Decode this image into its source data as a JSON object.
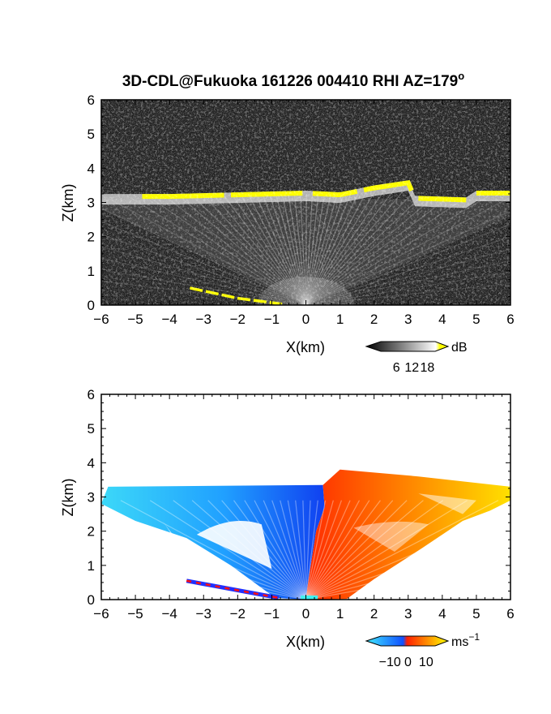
{
  "title": "3D-CDL@Fukuoka 161226 004410 RHI AZ=179",
  "title_sup": "o",
  "chart_data": [
    {
      "type": "heatmap",
      "field": "backscatter",
      "xlabel": "X(km)",
      "ylabel": "Z(km)",
      "xlim": [
        -6,
        6
      ],
      "ylim": [
        0,
        6
      ],
      "xticks": [
        "−6",
        "−5",
        "−4",
        "−3",
        "−2",
        "−1",
        "0",
        "1",
        "2",
        "3",
        "4",
        "5",
        "6"
      ],
      "yticks": [
        "0",
        "1",
        "2",
        "3",
        "4",
        "5",
        "6"
      ],
      "colorbar": {
        "unit": "dB",
        "ticks": [
          "6",
          "12",
          "18"
        ],
        "tick_values": [
          6,
          12,
          18
        ],
        "range": [
          0,
          21
        ],
        "colors": [
          "#000000",
          "#ffffff",
          "#ffff00"
        ]
      },
      "features": {
        "cloud_base_km": [
          [
            -6,
            3.15
          ],
          [
            -4,
            3.15
          ],
          [
            -2,
            3.2
          ],
          [
            0,
            3.25
          ],
          [
            1,
            3.2
          ],
          [
            2,
            3.4
          ],
          [
            3,
            3.55
          ],
          [
            3.2,
            3.1
          ],
          [
            4.7,
            3.05
          ],
          [
            5,
            3.25
          ],
          [
            6,
            3.25
          ]
        ],
        "surface_echo_km": [
          [
            -3.4,
            0.5
          ],
          [
            -2,
            0.2
          ],
          [
            -0.7,
            0.03
          ]
        ]
      }
    },
    {
      "type": "heatmap",
      "field": "doppler_velocity",
      "xlabel": "X(km)",
      "ylabel": "Z(km)",
      "xlim": [
        -6,
        6
      ],
      "ylim": [
        0,
        6
      ],
      "xticks": [
        "−6",
        "−5",
        "−4",
        "−3",
        "−2",
        "−1",
        "0",
        "1",
        "2",
        "3",
        "4",
        "5",
        "6"
      ],
      "yticks": [
        "0",
        "1",
        "2",
        "3",
        "4",
        "5",
        "6"
      ],
      "colorbar": {
        "unit": "ms",
        "unit_sup": "−1",
        "ticks": [
          "−10",
          "0",
          "10"
        ],
        "tick_values": [
          -10,
          0,
          10
        ],
        "range": [
          -15,
          15
        ],
        "colors": [
          "#40e8ff",
          "#1050ff",
          "#ff2000",
          "#ff9000",
          "#ffff00"
        ]
      },
      "features": {
        "negative_region": "x < 0.5 km, velocity approx −15 to −5",
        "positive_region": "x > 0.5 km, velocity approx 0 to 15",
        "echo_top_km": [
          [
            -6,
            3.3
          ],
          [
            0.5,
            3.35
          ],
          [
            1,
            3.8
          ],
          [
            3.3,
            3.6
          ],
          [
            6,
            3.3
          ]
        ]
      }
    }
  ]
}
